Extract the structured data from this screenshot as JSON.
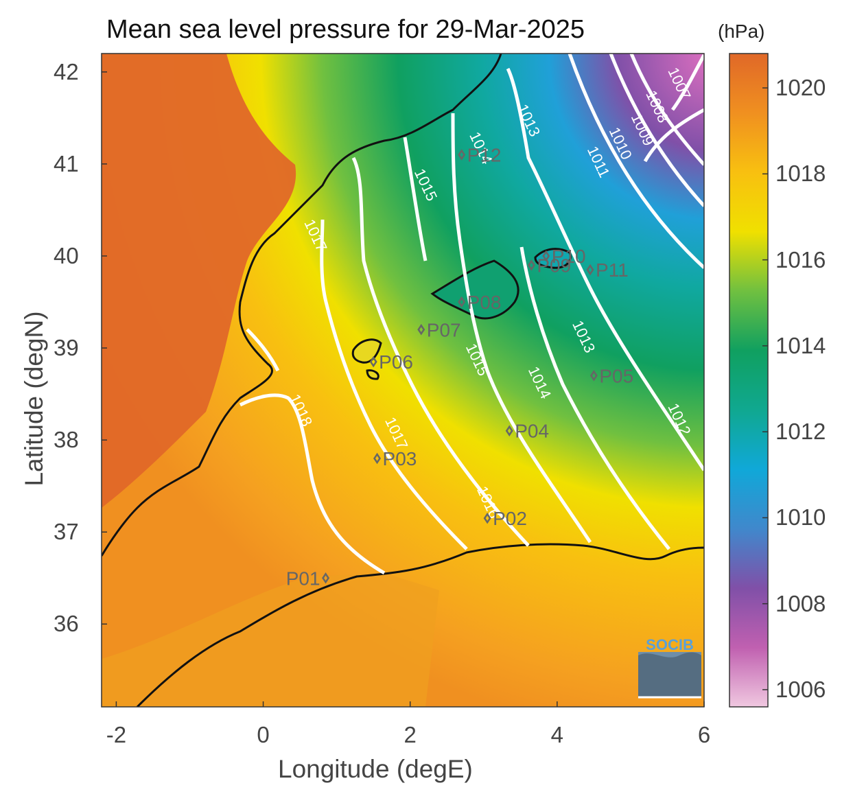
{
  "title": "Mean sea level pressure for 29-Mar-2025",
  "xlabel": "Longitude (degE)",
  "ylabel": "Latitude (degN)",
  "colorbar_unit": "(hPa)",
  "x_ticks": [
    "-2",
    "0",
    "2",
    "4",
    "6"
  ],
  "y_ticks": [
    "42",
    "41",
    "40",
    "39",
    "38",
    "37",
    "36"
  ],
  "colorbar_ticks": [
    "1020",
    "1018",
    "1016",
    "1014",
    "1012",
    "1010",
    "1008",
    "1006"
  ],
  "logo_text": "SOCIB",
  "chart_data": {
    "type": "heatmap",
    "variable": "Mean sea level pressure",
    "units": "hPa",
    "xlim": [
      -2.2,
      6.0
    ],
    "ylim": [
      35.1,
      42.2
    ],
    "clim": [
      1005.6,
      1020.8
    ],
    "colormap": [
      "#f0c8e0",
      "#c060b0",
      "#8050a8",
      "#4088cc",
      "#10a8d8",
      "#10a890",
      "#10a060",
      "#70c040",
      "#f0e000",
      "#f8c010",
      "#f09020",
      "#e06828"
    ],
    "contour_levels": [
      1007,
      1008,
      1009,
      1010,
      1011,
      1012,
      1013,
      1014,
      1015,
      1016,
      1017,
      1018
    ],
    "contour_labels": [
      {
        "text": "1007",
        "lon": 5.6,
        "lat": 41.85
      },
      {
        "text": "1008",
        "lon": 5.3,
        "lat": 41.6
      },
      {
        "text": "1009",
        "lon": 5.1,
        "lat": 41.35
      },
      {
        "text": "1010",
        "lon": 4.8,
        "lat": 41.2
      },
      {
        "text": "1011",
        "lon": 4.5,
        "lat": 41.0
      },
      {
        "text": "1013",
        "lon": 3.55,
        "lat": 41.45
      },
      {
        "text": "1013",
        "lon": 4.3,
        "lat": 39.1
      },
      {
        "text": "1012",
        "lon": 5.6,
        "lat": 38.2
      },
      {
        "text": "1014",
        "lon": 3.7,
        "lat": 38.6
      },
      {
        "text": "1015",
        "lon": 2.15,
        "lat": 40.75
      },
      {
        "text": "1015",
        "lon": 2.85,
        "lat": 38.85
      },
      {
        "text": "1016",
        "lon": 3.0,
        "lat": 37.3
      },
      {
        "text": "1017",
        "lon": 1.75,
        "lat": 38.05
      },
      {
        "text": "1017",
        "lon": 0.65,
        "lat": 40.2
      },
      {
        "text": "1018",
        "lon": 0.45,
        "lat": 38.3
      },
      {
        "text": "1014",
        "lon": 2.9,
        "lat": 41.15
      }
    ],
    "stations": [
      {
        "name": "P01",
        "lon": 0.85,
        "lat": 36.5
      },
      {
        "name": "P02",
        "lon": 3.05,
        "lat": 37.15
      },
      {
        "name": "P03",
        "lon": 1.55,
        "lat": 37.8
      },
      {
        "name": "P04",
        "lon": 3.35,
        "lat": 38.1
      },
      {
        "name": "P05",
        "lon": 4.5,
        "lat": 38.7
      },
      {
        "name": "P06",
        "lon": 1.5,
        "lat": 38.85
      },
      {
        "name": "P07",
        "lon": 2.15,
        "lat": 39.2
      },
      {
        "name": "P08",
        "lon": 2.7,
        "lat": 39.5
      },
      {
        "name": "P09",
        "lon": 3.65,
        "lat": 39.9
      },
      {
        "name": "P10",
        "lon": 3.85,
        "lat": 40.0
      },
      {
        "name": "P11",
        "lon": 4.45,
        "lat": 39.85
      },
      {
        "name": "P12",
        "lon": 2.7,
        "lat": 41.1
      }
    ]
  }
}
